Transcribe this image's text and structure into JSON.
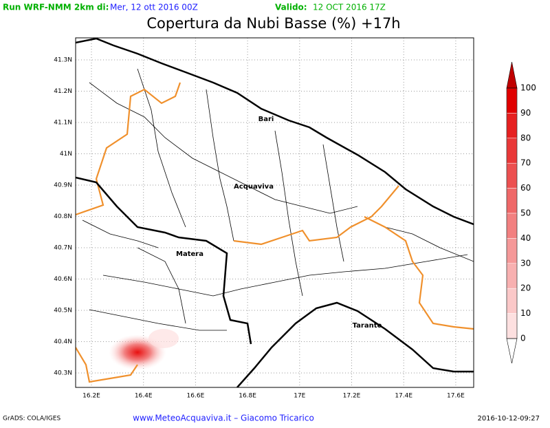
{
  "header": {
    "run": "Run WRF-NMM 2km di:",
    "run_date": "Mer, 12 ott 2016 00Z",
    "valid": "Valido:",
    "valid_date": "12 OCT 2016 17Z",
    "title": "Copertura da Nubi Basse (%) +17h"
  },
  "map": {
    "lat_labels": [
      "41.3N",
      "41.2N",
      "41.1N",
      "41N",
      "40.9N",
      "40.8N",
      "40.7N",
      "40.6N",
      "40.5N",
      "40.4N",
      "40.3N"
    ],
    "lon_labels": [
      "16.2E",
      "16.4E",
      "16.6E",
      "16.8E",
      "17E",
      "17.2E",
      "17.4E",
      "17.6E"
    ],
    "cities": [
      "Bari",
      "Acquaviva",
      "Matera",
      "Taranto"
    ]
  },
  "colorbar": {
    "levels": [
      100,
      90,
      80,
      70,
      60,
      50,
      40,
      30,
      20,
      10,
      0
    ],
    "colors": [
      "#e00000",
      "#e62020",
      "#e93838",
      "#ec5050",
      "#ef6868",
      "#f28080",
      "#f59898",
      "#f8b0b0",
      "#fbc8c8",
      "#fde0e0"
    ],
    "top_color": "#c00000",
    "bottom_color": "#ffffff"
  },
  "footer": {
    "left": "GrADS: COLA/IGES",
    "center": "www.MeteoAcquaviva.it – Giacomo Tricarico",
    "right": "2016-10-12-09:27"
  }
}
